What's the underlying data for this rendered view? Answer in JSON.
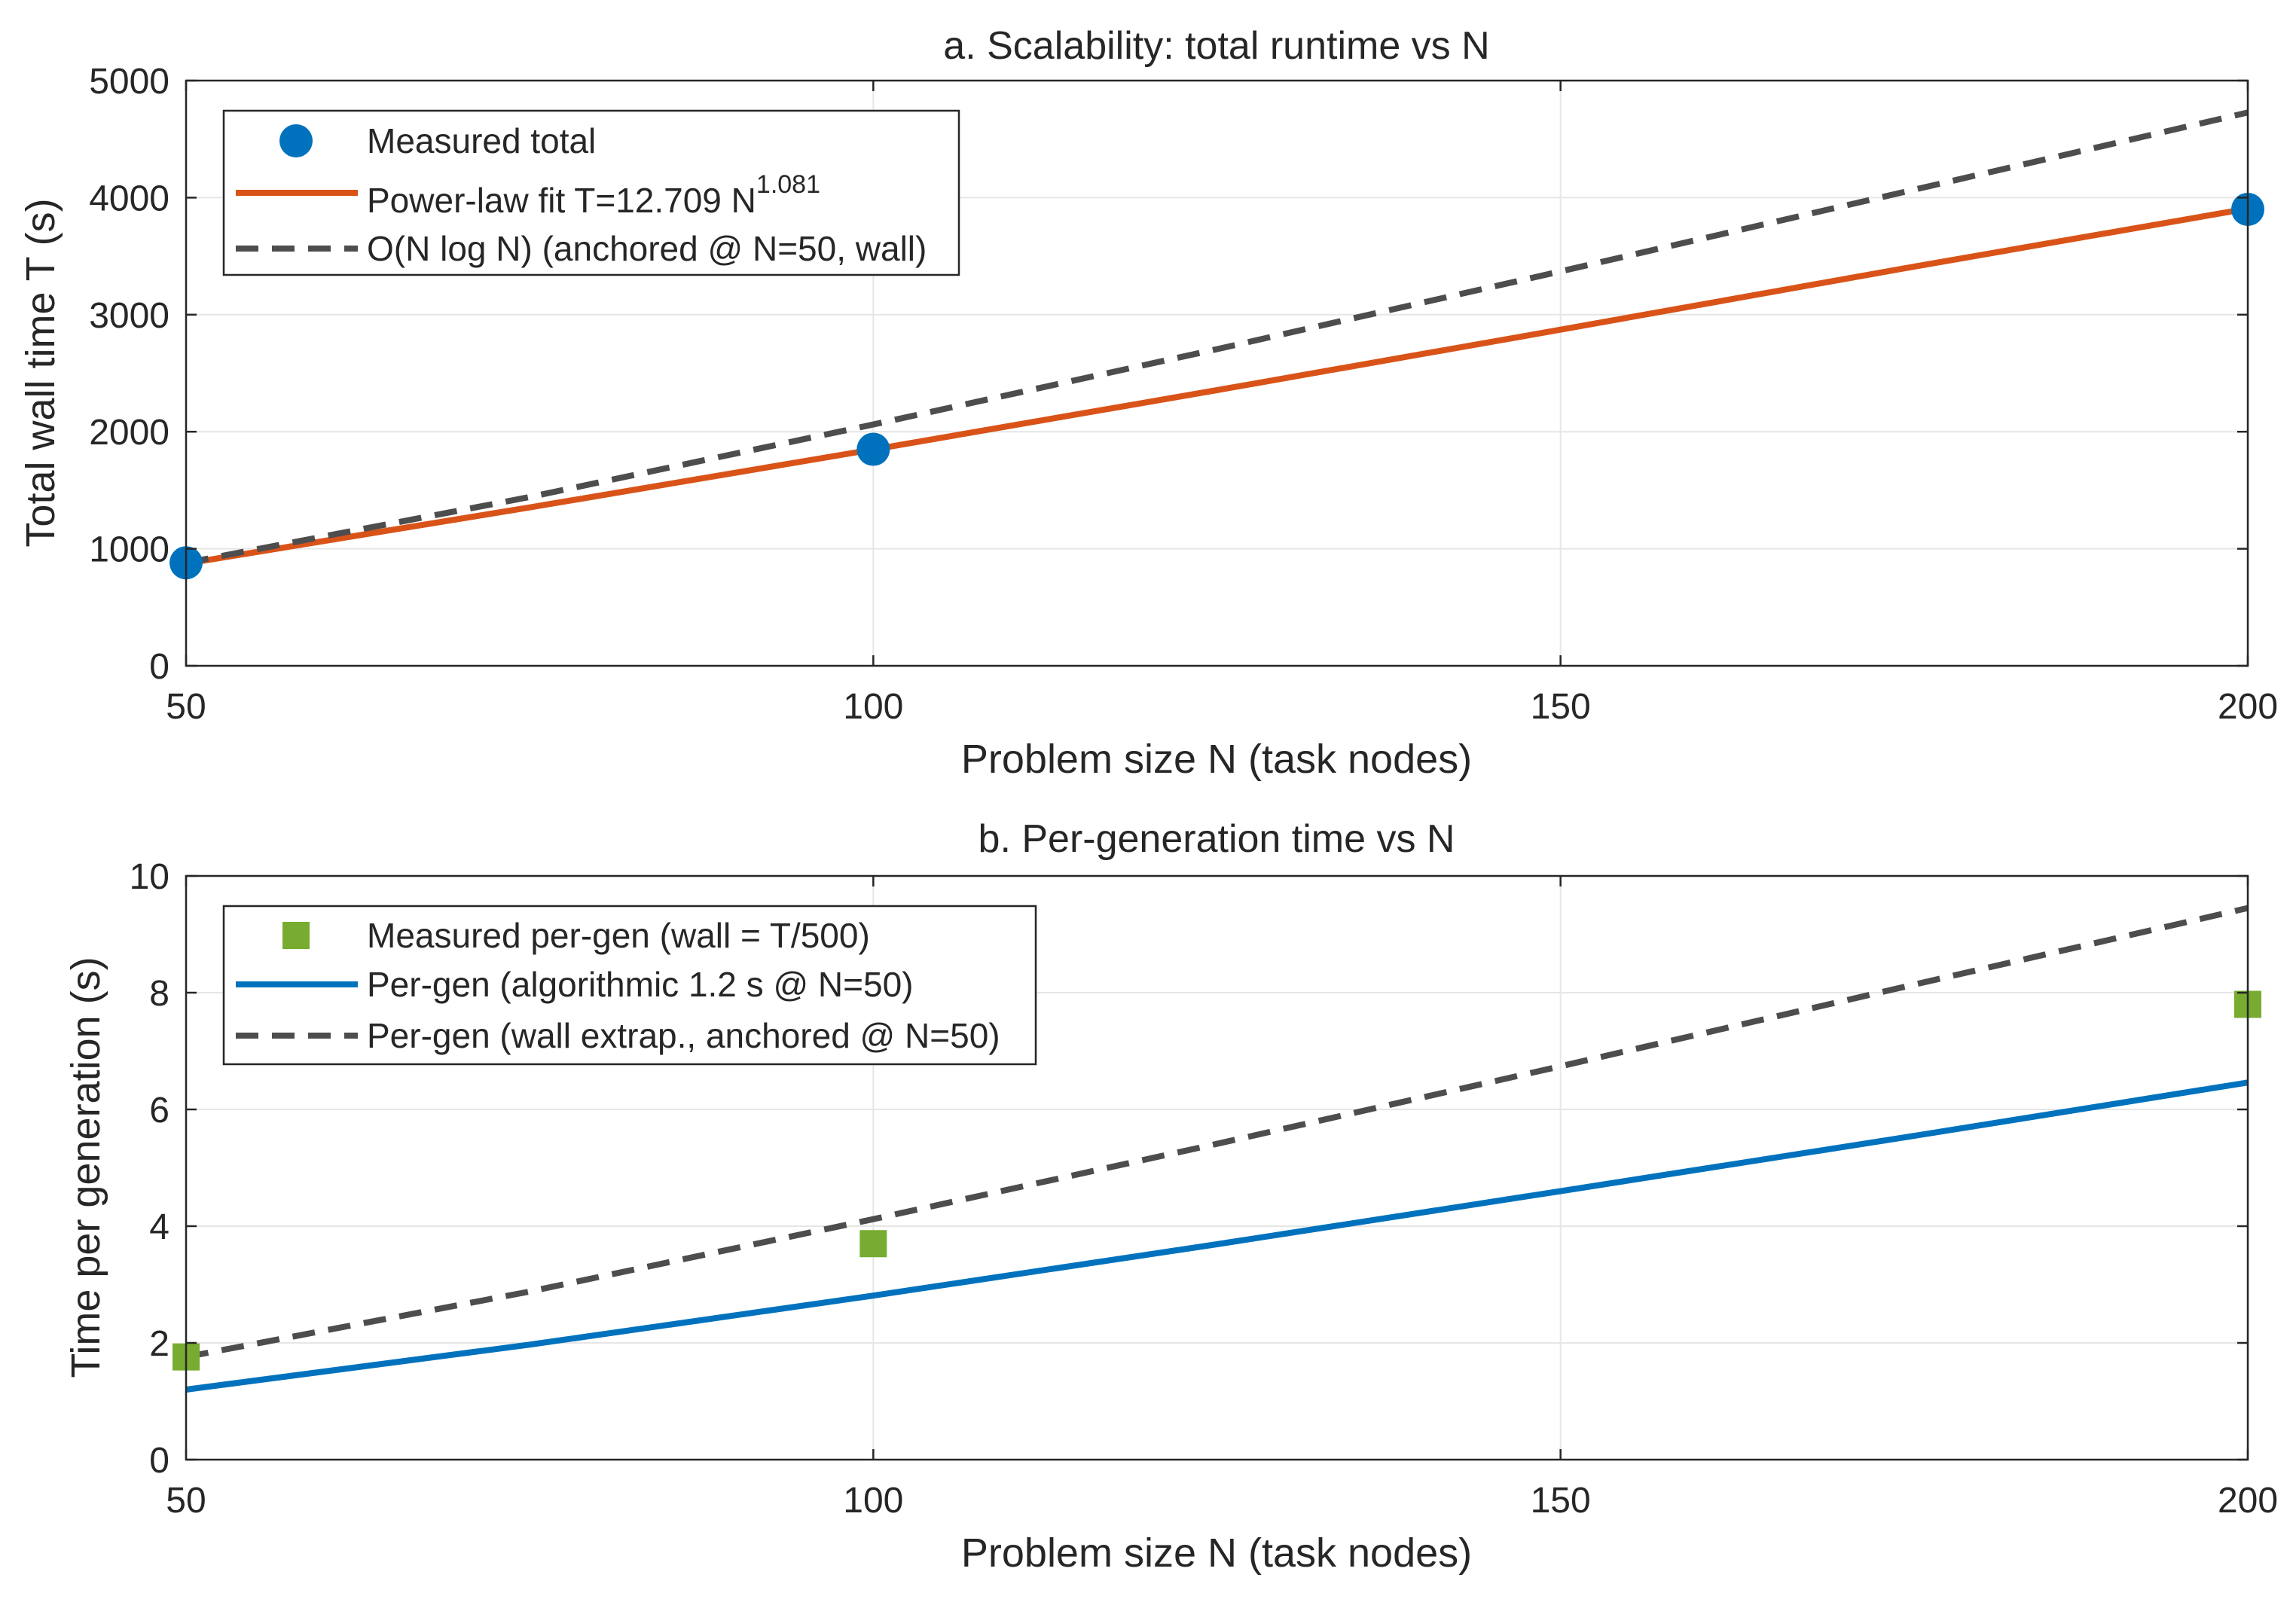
{
  "chart_data": [
    {
      "type": "line",
      "title": "a. Scalability: total runtime vs N",
      "xlabel": "Problem size N (task nodes)",
      "ylabel": "Total wall time T (s)",
      "xlim": [
        50,
        200
      ],
      "ylim": [
        0,
        5000
      ],
      "xticks": [
        50,
        100,
        150,
        200
      ],
      "yticks": [
        0,
        1000,
        2000,
        3000,
        4000,
        5000
      ],
      "grid": true,
      "legend_position": "top-left",
      "series": [
        {
          "name": "Measured total",
          "kind": "scatter",
          "marker": "circle",
          "color": "#0072BD",
          "x": [
            50,
            100,
            200
          ],
          "y": [
            880,
            1850,
            3900
          ]
        },
        {
          "name": "Power-law fit  T=12.709 N",
          "name_superscript": "1.081",
          "kind": "line",
          "style": "solid",
          "color": "#D95319",
          "x": [
            50,
            75,
            100,
            125,
            150,
            175,
            200
          ],
          "y": [
            874,
            1353,
            1848,
            2355,
            2872,
            3396,
            3906
          ]
        },
        {
          "name": "O(N log N) (anchored @ N=50, wall)",
          "kind": "line",
          "style": "dashed",
          "color": "#4D4D4D",
          "x": [
            50,
            75,
            100,
            125,
            150,
            175,
            200
          ],
          "y": [
            880,
            1442,
            2062,
            2705,
            3370,
            4048,
            4727
          ]
        }
      ]
    },
    {
      "type": "line",
      "title": "b. Per-generation time vs N",
      "xlabel": "Problem size N (task nodes)",
      "ylabel": "Time per generation (s)",
      "xlim": [
        50,
        200
      ],
      "ylim": [
        0,
        10
      ],
      "xticks": [
        50,
        100,
        150,
        200
      ],
      "yticks": [
        0,
        2,
        4,
        6,
        8,
        10
      ],
      "grid": true,
      "legend_position": "top-left",
      "series": [
        {
          "name": "Measured per-gen (wall = T/500)",
          "kind": "scatter",
          "marker": "square",
          "color": "#77AC30",
          "x": [
            50,
            100,
            200
          ],
          "y": [
            1.76,
            3.7,
            7.8
          ]
        },
        {
          "name": "Per-gen (algorithmic 1.2 s @ N=50)",
          "kind": "line",
          "style": "solid",
          "color": "#0072BD",
          "x": [
            50,
            75,
            100,
            125,
            150,
            175,
            200
          ],
          "y": [
            1.2,
            1.97,
            2.81,
            3.69,
            4.6,
            5.52,
            6.46
          ]
        },
        {
          "name": "Per-gen (wall extrap., anchored @ N=50)",
          "kind": "line",
          "style": "dashed",
          "color": "#4D4D4D",
          "x": [
            50,
            75,
            100,
            125,
            150,
            175,
            200
          ],
          "y": [
            1.76,
            2.88,
            4.12,
            5.41,
            6.74,
            8.1,
            9.45
          ]
        }
      ]
    }
  ]
}
